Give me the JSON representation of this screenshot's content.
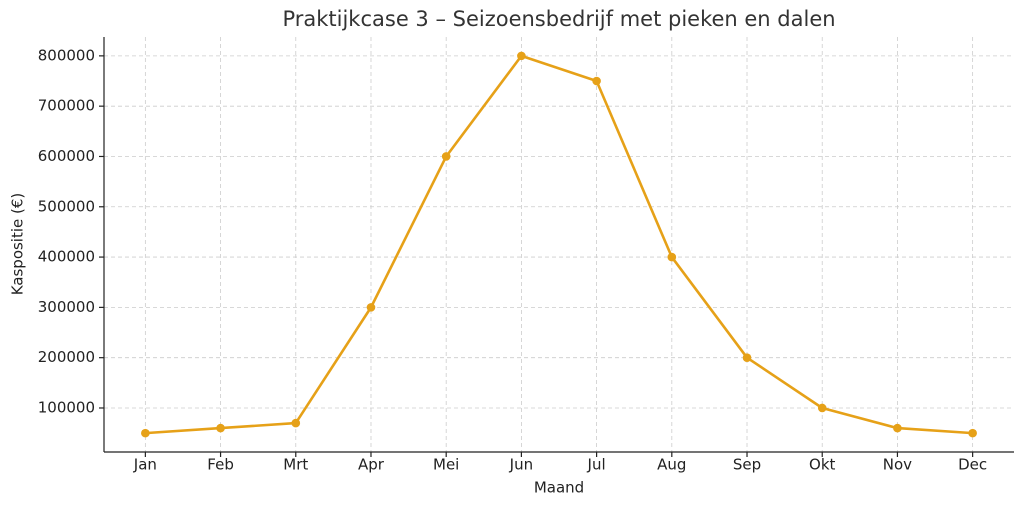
{
  "chart_data": {
    "type": "line",
    "title": "Praktijkcase 3 – Seizoensbedrijf met pieken en dalen",
    "x_label": "Maand",
    "y_label": "Kaspositie (€)",
    "categories": [
      "Jan",
      "Feb",
      "Mrt",
      "Apr",
      "Mei",
      "Jun",
      "Jul",
      "Aug",
      "Sep",
      "Okt",
      "Nov",
      "Dec"
    ],
    "series": [
      {
        "color": "#e6a118",
        "values": [
          50000,
          60000,
          70000,
          300000,
          600000,
          800000,
          750000,
          400000,
          200000,
          100000,
          60000,
          50000
        ]
      }
    ],
    "ylim": [
      12500,
      837500
    ],
    "yticks": [
      100000,
      200000,
      300000,
      400000,
      500000,
      600000,
      700000,
      800000
    ],
    "grid": true
  }
}
